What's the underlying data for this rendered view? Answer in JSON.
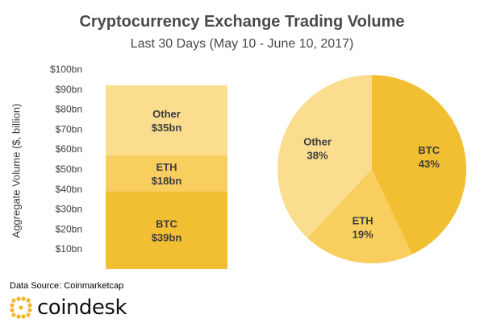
{
  "header": {
    "title": "Cryptocurrency Exchange Trading Volume",
    "subtitle": "Last 30 Days (May 10 - June 10, 2017)"
  },
  "footer": {
    "source": "Data Source: Coinmarketcap",
    "logo_text": "coindesk"
  },
  "colors": {
    "btc": "#F2BE32",
    "eth": "#F8CE5E",
    "other": "#FADD8F",
    "logo": "#F2B72B"
  },
  "chart_data": [
    {
      "type": "bar",
      "stacked": true,
      "ylabel": "Aggregate Volume ($, billion)",
      "ylim": [
        0,
        100
      ],
      "yticks": [
        "$10bn",
        "$20bn",
        "$30bn",
        "$40bn",
        "$50bn",
        "$60bn",
        "$70bn",
        "$80bn",
        "$90bn",
        "$100bn"
      ],
      "segments": [
        {
          "name": "BTC",
          "value": 39,
          "label": "$39bn"
        },
        {
          "name": "ETH",
          "value": 18,
          "label": "$18bn"
        },
        {
          "name": "Other",
          "value": 35,
          "label": "$35bn"
        }
      ]
    },
    {
      "type": "pie",
      "slices": [
        {
          "name": "BTC",
          "value": 43,
          "label": "43%"
        },
        {
          "name": "ETH",
          "value": 19,
          "label": "19%"
        },
        {
          "name": "Other",
          "value": 38,
          "label": "38%"
        }
      ]
    }
  ]
}
